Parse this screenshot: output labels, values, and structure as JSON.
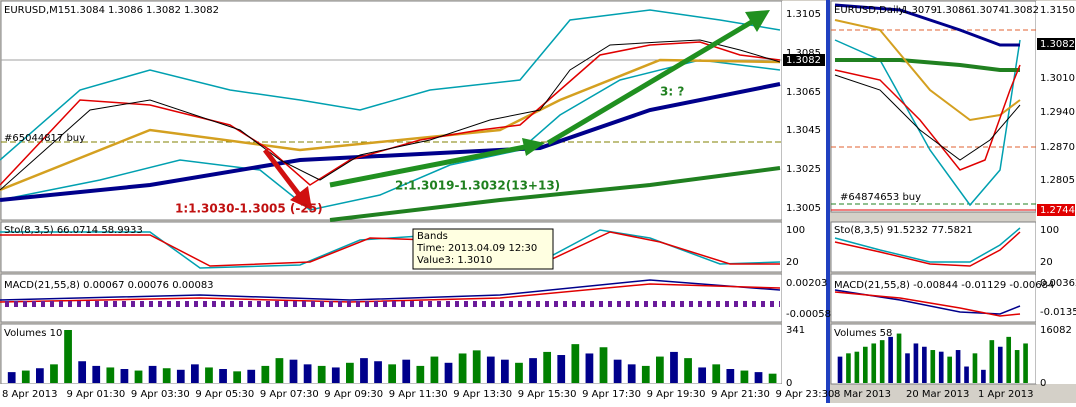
{
  "left": {
    "title": "EURUSD,M15",
    "ohlc": [
      "1.3084",
      "1.3086",
      "1.3082",
      "1.3082"
    ],
    "price_ticks": [
      "1.3105",
      "1.3085",
      "1.3065",
      "1.3045",
      "1.3025",
      "1.3005"
    ],
    "current_price": "1.3082",
    "order_label": "#65044817 buy",
    "annotations": [
      "1:1.3030-1.3005 (-25)",
      "2:1.3019-1.3032(13+13)",
      "3: ?"
    ],
    "tooltip": [
      "Bands",
      "Time: 2013.04.09 12:30",
      "Value3: 1.3010"
    ],
    "sto": {
      "label": "Sto(8,3,5) 66.0714 58.9933",
      "ticks": [
        "100",
        "20"
      ]
    },
    "macd": {
      "label": "MACD(21,55,8) 0.00067 0.00076 0.00083",
      "ticks": [
        "0.00203",
        "-0.00058"
      ]
    },
    "volumes": {
      "label": "Volumes 10",
      "ticks": [
        341,
        0
      ],
      "values": [
        70,
        80,
        95,
        120,
        341,
        140,
        110,
        100,
        90,
        80,
        110,
        95,
        85,
        120,
        100,
        90,
        75,
        85,
        110,
        160,
        150,
        120,
        110,
        100,
        130,
        160,
        140,
        120,
        150,
        110,
        170,
        130,
        190,
        210,
        170,
        150,
        130,
        160,
        200,
        180,
        250,
        190,
        230,
        150,
        120,
        110,
        170,
        200,
        160,
        100,
        120,
        90,
        80,
        70,
        60
      ],
      "colors": [
        "#00008b",
        "#008000",
        "#00008b",
        "#008000",
        "#008000",
        "#00008b",
        "#00008b",
        "#008000",
        "#00008b",
        "#008000",
        "#00008b",
        "#008000",
        "#00008b",
        "#00008b",
        "#008000",
        "#00008b",
        "#008000",
        "#00008b",
        "#008000",
        "#008000",
        "#00008b",
        "#00008b",
        "#008000",
        "#00008b",
        "#008000",
        "#00008b",
        "#00008b",
        "#008000",
        "#00008b",
        "#008000",
        "#008000",
        "#00008b",
        "#008000",
        "#008000",
        "#00008b",
        "#00008b",
        "#008000",
        "#00008b",
        "#008000",
        "#00008b",
        "#008000",
        "#00008b",
        "#008000",
        "#00008b",
        "#00008b",
        "#008000",
        "#008000",
        "#00008b",
        "#008000",
        "#00008b",
        "#008000",
        "#00008b",
        "#008000",
        "#00008b",
        "#008000"
      ]
    },
    "time_labels": [
      "8 Apr 2013",
      "9 Apr 01:30",
      "9 Apr 03:30",
      "9 Apr 05:30",
      "9 Apr 07:30",
      "9 Apr 09:30",
      "9 Apr 11:30",
      "9 Apr 13:30",
      "9 Apr 15:30",
      "9 Apr 17:30",
      "9 Apr 19:30",
      "9 Apr 21:30",
      "9 Apr 23:30"
    ]
  },
  "right": {
    "title": "EURUSD,Daily",
    "ohlc": [
      "1.3079",
      "1.3086",
      "1.3074",
      "1.3082"
    ],
    "price_ticks": [
      "1.3150",
      "1.3010",
      "1.2940",
      "1.2870",
      "1.2805"
    ],
    "current_price": "1.3082",
    "order_price": "1.2744",
    "order_label": "#64874653 buy",
    "sto": {
      "label": "Sto(8,3,5) 91.5232 77.5821",
      "ticks": [
        "100",
        "20"
      ]
    },
    "macd": {
      "label": "MACD(21,55,8) -0.00844 -0.01129 -0.00684",
      "ticks": [
        "0.00362",
        "-0.0135"
      ]
    },
    "volumes": {
      "label": "Volumes 58",
      "ticks": [
        16082,
        0
      ],
      "values": [
        8000,
        9000,
        9500,
        11000,
        12000,
        13000,
        14000,
        15000,
        9000,
        12000,
        11000,
        10000,
        9500,
        8000,
        10000,
        5000,
        9000,
        4000,
        13000,
        11000,
        14000,
        10000,
        12000
      ],
      "colors": [
        "#00008b",
        "#008000",
        "#008000",
        "#008000",
        "#008000",
        "#008000",
        "#00008b",
        "#008000",
        "#00008b",
        "#00008b",
        "#00008b",
        "#008000",
        "#00008b",
        "#008000",
        "#00008b",
        "#00008b",
        "#008000",
        "#00008b",
        "#008000",
        "#00008b",
        "#008000",
        "#008000",
        "#008000"
      ]
    },
    "time_labels": [
      "8 Mar 2013",
      "20 Mar 2013",
      "1 Apr 2013"
    ]
  }
}
